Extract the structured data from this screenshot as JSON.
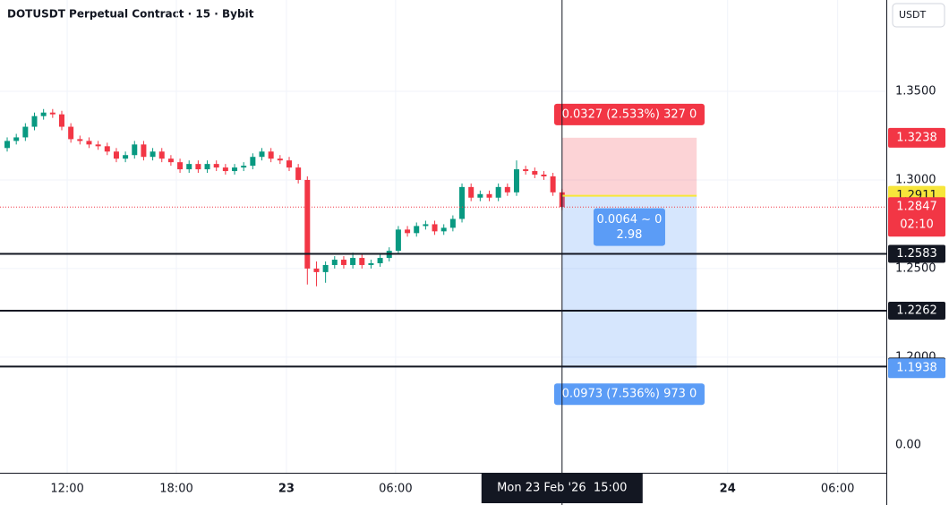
{
  "header": {
    "title": "DOTUSDT Perpetual Contract · 15 · Bybit",
    "currency_button": "USDT"
  },
  "chart_data": {
    "type": "candlestick",
    "open": [
      1.318,
      1.322,
      1.324,
      1.33,
      1.336,
      1.338,
      1.337,
      1.33,
      1.323,
      1.322,
      1.32,
      1.319,
      1.316,
      1.312,
      1.314,
      1.32,
      1.313,
      1.316,
      1.312,
      1.31,
      1.306,
      1.309,
      1.306,
      1.309,
      1.307,
      1.305,
      1.307,
      1.308,
      1.313,
      1.316,
      1.312,
      1.311,
      1.307,
      1.3,
      1.25,
      1.248,
      1.252,
      1.255,
      1.252,
      1.256,
      1.252,
      1.253,
      1.256,
      1.26,
      1.272,
      1.27,
      1.274,
      1.275,
      1.271,
      1.273,
      1.278,
      1.296,
      1.29,
      1.292,
      1.29,
      1.296,
      1.293,
      1.306,
      1.305,
      1.303,
      1.302,
      1.293
    ],
    "high": [
      1.324,
      1.326,
      1.332,
      1.338,
      1.34,
      1.34,
      1.339,
      1.332,
      1.325,
      1.324,
      1.322,
      1.321,
      1.318,
      1.316,
      1.322,
      1.322,
      1.318,
      1.318,
      1.314,
      1.312,
      1.311,
      1.311,
      1.311,
      1.311,
      1.309,
      1.309,
      1.31,
      1.315,
      1.318,
      1.318,
      1.314,
      1.313,
      1.309,
      1.302,
      1.254,
      1.254,
      1.257,
      1.257,
      1.259,
      1.258,
      1.255,
      1.258,
      1.262,
      1.274,
      1.274,
      1.276,
      1.277,
      1.277,
      1.275,
      1.28,
      1.298,
      1.298,
      1.294,
      1.294,
      1.298,
      1.298,
      1.311,
      1.308,
      1.307,
      1.305,
      1.304,
      1.295
    ],
    "low": [
      1.316,
      1.32,
      1.322,
      1.328,
      1.334,
      1.335,
      1.328,
      1.321,
      1.32,
      1.318,
      1.317,
      1.314,
      1.31,
      1.31,
      1.312,
      1.311,
      1.311,
      1.31,
      1.308,
      1.304,
      1.304,
      1.304,
      1.304,
      1.305,
      1.303,
      1.303,
      1.305,
      1.306,
      1.311,
      1.31,
      1.309,
      1.305,
      1.298,
      1.241,
      1.24,
      1.242,
      1.25,
      1.25,
      1.25,
      1.25,
      1.25,
      1.251,
      1.254,
      1.258,
      1.268,
      1.268,
      1.272,
      1.269,
      1.269,
      1.271,
      1.276,
      1.288,
      1.288,
      1.288,
      1.288,
      1.291,
      1.291,
      1.303,
      1.301,
      1.3,
      1.291,
      1.283
    ],
    "close": [
      1.322,
      1.324,
      1.33,
      1.336,
      1.338,
      1.337,
      1.33,
      1.323,
      1.322,
      1.32,
      1.319,
      1.316,
      1.312,
      1.314,
      1.32,
      1.313,
      1.316,
      1.312,
      1.31,
      1.306,
      1.309,
      1.306,
      1.309,
      1.307,
      1.305,
      1.307,
      1.308,
      1.313,
      1.316,
      1.312,
      1.311,
      1.307,
      1.3,
      1.25,
      1.248,
      1.252,
      1.255,
      1.252,
      1.256,
      1.252,
      1.253,
      1.256,
      1.26,
      1.272,
      1.27,
      1.274,
      1.275,
      1.271,
      1.273,
      1.278,
      1.296,
      1.29,
      1.292,
      1.29,
      1.296,
      1.293,
      1.306,
      1.305,
      1.303,
      1.302,
      1.293,
      1.2847
    ],
    "up_color": "#089981",
    "down_color": "#f23645",
    "xlim": [
      -0.79,
      96.65
    ],
    "xticks": [
      {
        "value": 6.6,
        "label": "12:00"
      },
      {
        "value": 18.6,
        "label": "18:00"
      },
      {
        "value": 30.7,
        "label": "23"
      },
      {
        "value": 42.7,
        "label": "06:00"
      },
      {
        "value": 79.2,
        "label": "24"
      },
      {
        "value": 91.3,
        "label": "06:00"
      }
    ],
    "ylim": [
      1.1348,
      1.4015
    ],
    "yticks": [
      {
        "value": 1.35,
        "label": "1.3500"
      },
      {
        "value": 1.3,
        "label": "1.3000"
      },
      {
        "value": 1.25,
        "label": "1.2500"
      },
      {
        "value": 1.2,
        "label": "1.2000"
      }
    ],
    "scale_extra_label": "0.00",
    "grid": true,
    "crosshair": {
      "x": 61,
      "label": "Mon 23 Feb '26  15:00"
    },
    "horizontal_lines": [
      1.2583,
      1.2262,
      1.1947
    ],
    "current_price": {
      "value": 1.2847,
      "countdown": "02:10",
      "color": "#f23645"
    },
    "position": {
      "stop": 1.3238,
      "entry": 1.2911,
      "target": 1.1938,
      "start": 61,
      "end": 75.8,
      "stop_label": "0.0327 (2.533%) 327 0",
      "mid_label": [
        "0.0064 ~ 0",
        "2.98"
      ],
      "target_label": "0.0973 (7.536%) 973 0",
      "stop_color": "#f23645",
      "entry_color": "#f7e63a",
      "target_color": "#5b9cf6"
    }
  }
}
